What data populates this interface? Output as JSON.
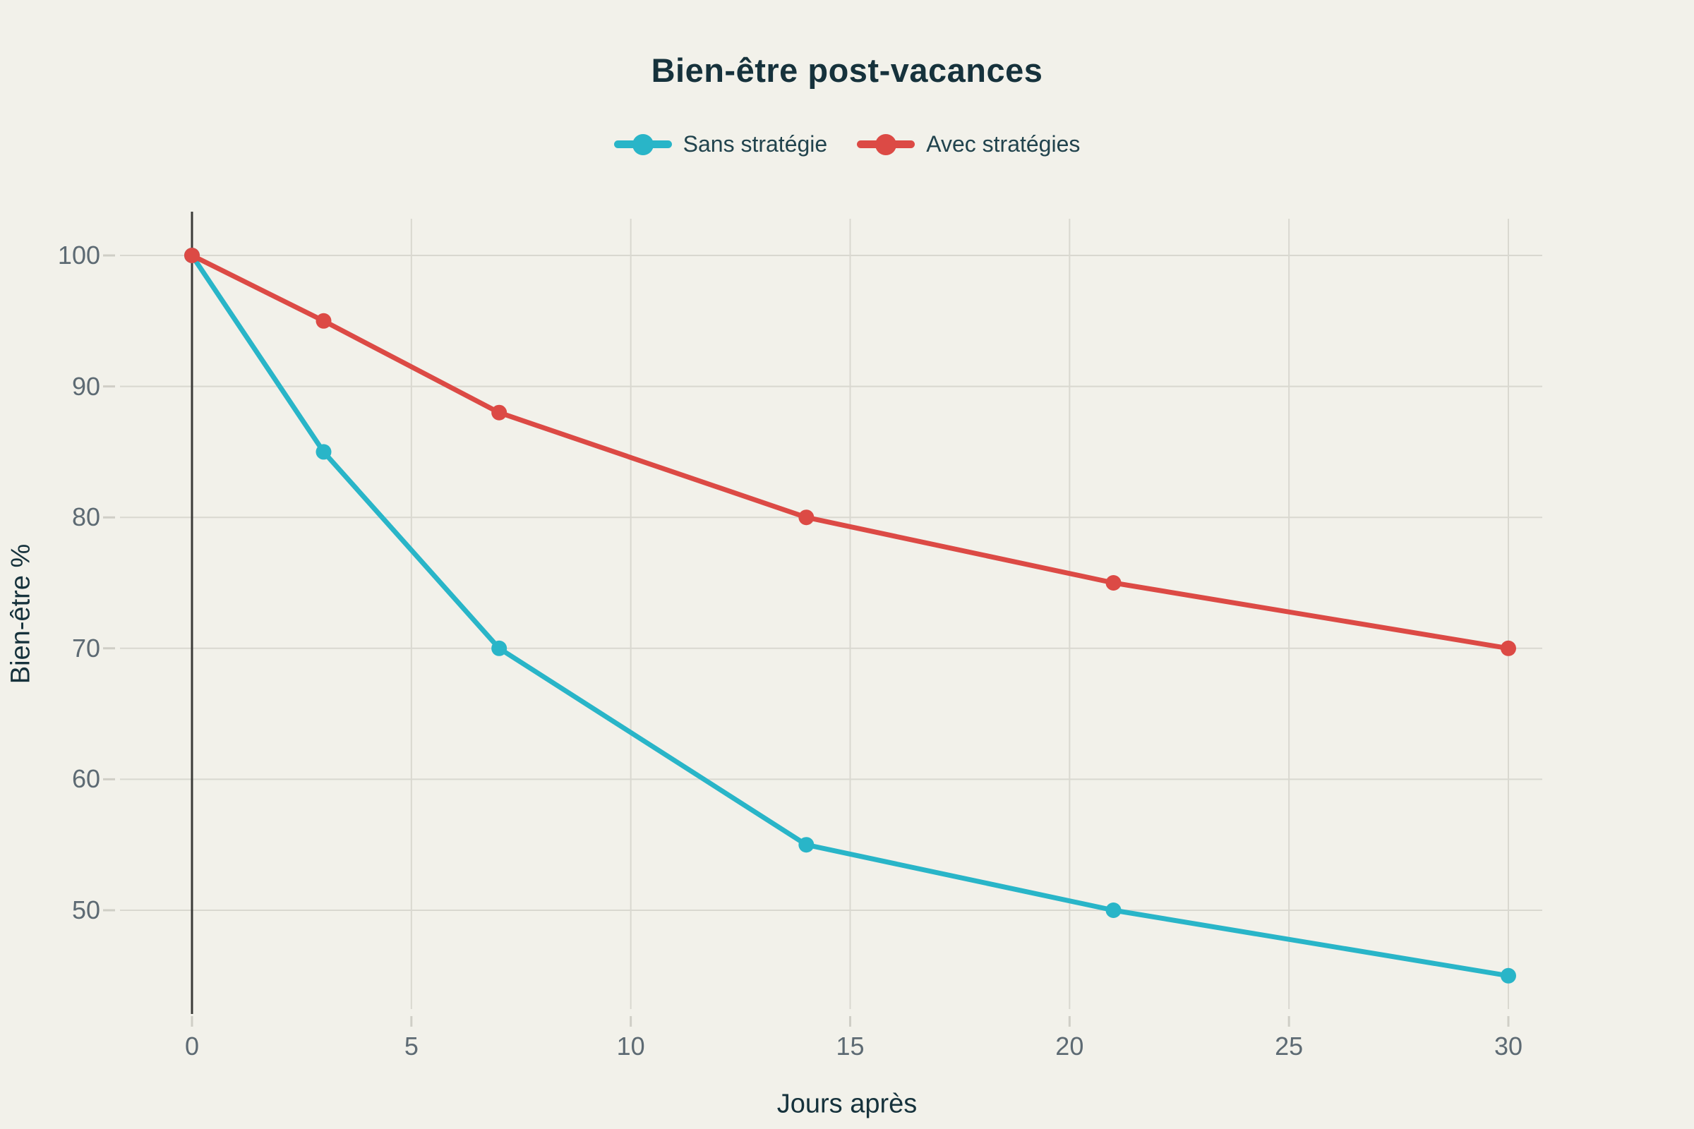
{
  "colors": {
    "background": "#f2f1ea",
    "title_text": "#16323c",
    "legend_text": "#21434d",
    "tick_label": "#5d6a73",
    "axis_title_text": "#16323c",
    "gridline": "#d9d8d0",
    "tick_mark": "#cfcec6",
    "axis_line": "#3a3a38",
    "series_sans": "#29b5c8",
    "series_avec": "#dc4a45"
  },
  "chart_data": {
    "type": "line",
    "title": "Bien-être post-vacances",
    "xlabel": "Jours après",
    "ylabel": "Bien-être %",
    "x": [
      0,
      3,
      7,
      14,
      21,
      30
    ],
    "series": [
      {
        "name": "Sans stratégie",
        "color": "#29b5c8",
        "values": [
          100,
          85,
          70,
          55,
          50,
          45
        ]
      },
      {
        "name": "Avec stratégies",
        "color": "#dc4a45",
        "values": [
          100,
          95,
          88,
          80,
          75,
          70
        ]
      }
    ],
    "x_ticks": [
      0,
      5,
      10,
      15,
      20,
      25,
      30
    ],
    "y_ticks": [
      50,
      60,
      70,
      80,
      90,
      100
    ],
    "xlim": [
      0,
      30
    ],
    "ylim": [
      42,
      103
    ],
    "grid": true,
    "legend_position": "top",
    "marker": "circle"
  }
}
